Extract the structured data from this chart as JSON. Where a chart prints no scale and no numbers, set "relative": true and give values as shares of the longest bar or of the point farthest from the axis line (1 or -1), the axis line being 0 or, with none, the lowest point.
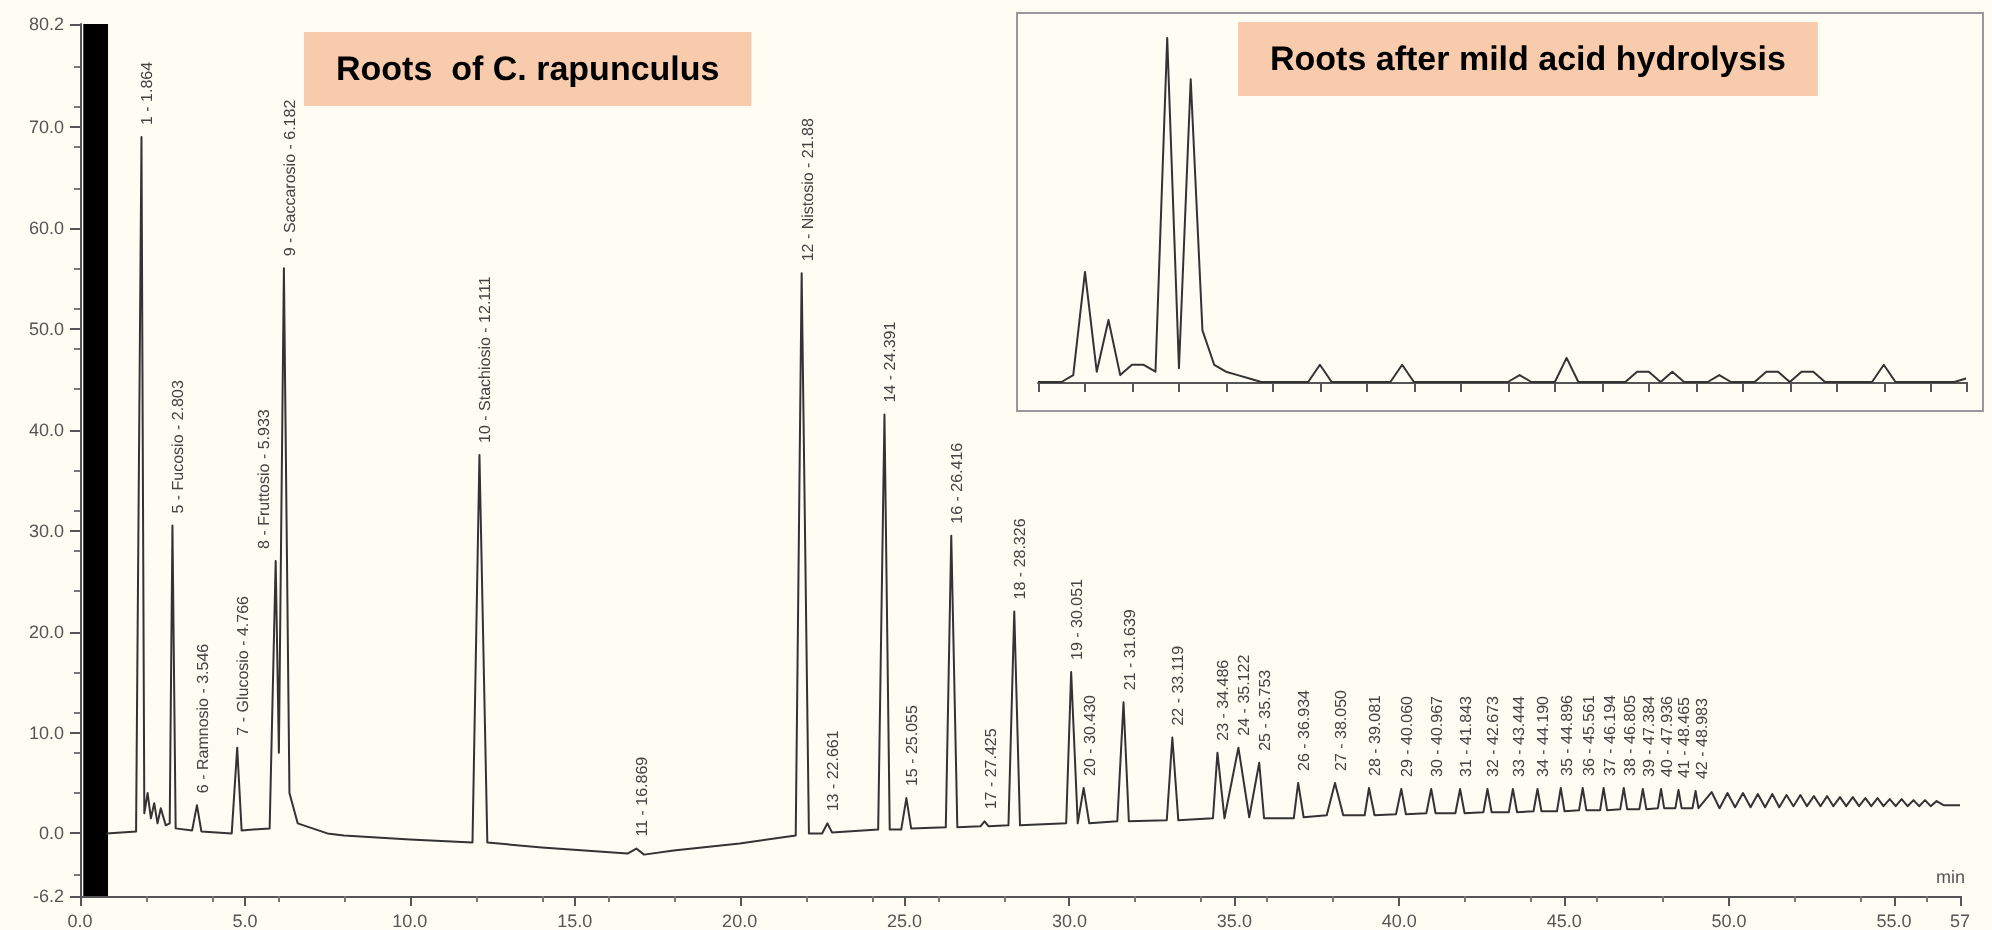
{
  "chart_data": [
    {
      "type": "line",
      "title": "Roots  of C. rapunculus",
      "xlabel": "min",
      "xlim": [
        0,
        57
      ],
      "ylim": [
        -6.2,
        80.2
      ],
      "xticks": [
        {
          "value": 0,
          "label": "0.0"
        },
        {
          "value": 5,
          "label": "5.0"
        },
        {
          "value": 10,
          "label": "10.0"
        },
        {
          "value": 15,
          "label": "15.0"
        },
        {
          "value": 20,
          "label": "20.0"
        },
        {
          "value": 25,
          "label": "25.0"
        },
        {
          "value": 30,
          "label": "30.0"
        },
        {
          "value": 35,
          "label": "35.0"
        },
        {
          "value": 40,
          "label": "40.0"
        },
        {
          "value": 45,
          "label": "45.0"
        },
        {
          "value": 50,
          "label": "50.0"
        },
        {
          "value": 55,
          "label": "55.0"
        },
        {
          "value": 57,
          "label": "57"
        }
      ],
      "yticks": [
        {
          "value": -6.2,
          "label": "-6.2"
        },
        {
          "value": 0,
          "label": "0.0"
        },
        {
          "value": 10,
          "label": "10.0"
        },
        {
          "value": 20,
          "label": "20.0"
        },
        {
          "value": 30,
          "label": "30.0"
        },
        {
          "value": 40,
          "label": "40.0"
        },
        {
          "value": 50,
          "label": "50.0"
        },
        {
          "value": 60,
          "label": "60.0"
        },
        {
          "value": 70,
          "label": "70.0"
        },
        {
          "value": 80.2,
          "label": "80.2"
        }
      ],
      "bands": [
        {
          "axis": "x",
          "from": 0.1,
          "to": 0.85,
          "color": "#000000"
        }
      ],
      "series": [
        {
          "color": "#333333",
          "x": [
            0.8,
            1.7,
            1.864,
            1.95,
            2.05,
            2.15,
            2.25,
            2.35,
            2.45,
            2.6,
            2.72,
            2.803,
            2.9,
            3.4,
            3.546,
            3.68,
            4.6,
            4.766,
            4.9,
            5.75,
            5.933,
            6.03,
            6.182,
            6.35,
            6.6,
            7.5,
            8,
            10,
            11.9,
            12.111,
            12.35,
            14,
            16.6,
            16.869,
            17.1,
            18,
            20,
            21.7,
            21.88,
            22.1,
            22.5,
            22.661,
            22.8,
            24.2,
            24.391,
            24.55,
            24.9,
            25.055,
            25.2,
            26.25,
            26.416,
            26.6,
            27.3,
            27.425,
            27.55,
            28.15,
            28.326,
            28.5,
            29.9,
            30.051,
            30.25,
            30.43,
            30.6,
            31.45,
            31.639,
            31.8,
            32.95,
            33.119,
            33.3,
            34.35,
            34.486,
            34.7,
            35.122,
            35.45,
            35.753,
            35.9,
            36.8,
            36.934,
            37.1,
            37.8,
            38.05,
            38.3,
            38.95,
            39.081,
            39.25,
            39.9,
            40.06,
            40.2,
            40.82,
            40.967,
            41.1,
            41.7,
            41.843,
            41.98,
            42.55,
            42.673,
            42.8,
            43.32,
            43.444,
            43.57,
            44.07,
            44.19,
            44.31,
            44.78,
            44.896,
            45.01,
            45.45,
            45.561,
            45.67,
            46.09,
            46.194,
            46.3,
            46.7,
            46.805,
            46.91,
            47.28,
            47.384,
            47.49,
            47.84,
            47.936,
            48.03,
            48.37,
            48.465,
            48.56,
            48.89,
            48.983,
            49.07,
            49.47,
            49.71,
            49.95,
            50.18,
            50.42,
            50.65,
            50.87,
            51.09,
            51.31,
            51.52,
            51.74,
            51.95,
            52.16,
            52.36,
            52.57,
            52.77,
            52.97,
            53.16,
            53.36,
            53.55,
            53.75,
            53.94,
            54.13,
            54.31,
            54.5,
            54.68,
            54.87,
            55.05,
            55.23,
            55.41,
            55.59,
            55.76,
            55.94,
            56.11,
            56.29,
            56.5,
            57
          ],
          "values": [
            0,
            0.2,
            69,
            2,
            4,
            1.5,
            3,
            1,
            2.5,
            0.8,
            1,
            30.5,
            0.5,
            0.3,
            2.8,
            0.2,
            0,
            8.5,
            0.3,
            0.5,
            27,
            8,
            56,
            4,
            1,
            0,
            -0.2,
            -0.6,
            -0.9,
            37.5,
            -0.9,
            -1.4,
            -2,
            -1.5,
            -2.1,
            -1.7,
            -1,
            -0.2,
            55.5,
            0,
            0,
            1,
            0.1,
            0.4,
            41.5,
            0.4,
            0.4,
            3.5,
            0.5,
            0.6,
            29.5,
            0.6,
            0.7,
            1.2,
            0.7,
            0.8,
            22,
            0.8,
            1,
            16,
            1,
            4.5,
            1,
            1.2,
            13,
            1.2,
            1.3,
            9.5,
            1.3,
            1.5,
            8,
            1.5,
            8.5,
            1.6,
            7,
            1.5,
            1.5,
            5,
            1.6,
            1.8,
            5,
            1.8,
            1.8,
            4.5,
            1.8,
            1.9,
            4.4,
            1.9,
            2,
            4.4,
            2,
            2,
            4.4,
            2,
            2.1,
            4.4,
            2.1,
            2.1,
            4.4,
            2.1,
            2.2,
            4.4,
            2.2,
            2.2,
            4.5,
            2.2,
            2.3,
            4.5,
            2.3,
            2.3,
            4.5,
            2.3,
            2.4,
            4.5,
            2.4,
            2.4,
            4.4,
            2.4,
            2.5,
            4.4,
            2.5,
            2.5,
            4.3,
            2.5,
            2.5,
            4.2,
            2.5,
            4.1,
            2.5,
            4,
            2.6,
            4,
            2.6,
            3.9,
            2.6,
            3.9,
            2.6,
            3.8,
            2.7,
            3.8,
            2.7,
            3.7,
            2.7,
            3.7,
            2.7,
            3.6,
            2.7,
            3.6,
            2.7,
            3.5,
            2.7,
            3.5,
            2.7,
            3.4,
            2.7,
            3.4,
            2.7,
            3.3,
            2.7,
            3.3,
            2.7,
            3.2,
            2.8,
            2.8
          ]
        }
      ],
      "annotations": [
        {
          "text": "1 - 1.864",
          "x": 1.864,
          "y": 69
        },
        {
          "text": "5 - Fucosio - 2.803",
          "x": 2.803,
          "y": 30.5
        },
        {
          "text": "6 - Ramnosio - 3.546",
          "x": 3.546,
          "y": 2.8
        },
        {
          "text": "7 - Glucosio - 4.766",
          "x": 4.766,
          "y": 8.5
        },
        {
          "text": "8 - Fruttosio - 5.933",
          "x": 5.933,
          "y": 27
        },
        {
          "text": "9 - Saccarosio - 6.182",
          "x": 6.182,
          "y": 56
        },
        {
          "text": "10 - Stachiosio - 12.111",
          "x": 12.111,
          "y": 37.5
        },
        {
          "text": "11 - 16.869",
          "x": 16.869,
          "y": -1.5
        },
        {
          "text": "12 - Nistosio - 21.88",
          "x": 21.88,
          "y": 55.5
        },
        {
          "text": "13 - 22.661",
          "x": 22.661,
          "y": 1
        },
        {
          "text": "14 - 24.391",
          "x": 24.391,
          "y": 41.5
        },
        {
          "text": "15 - 25.055",
          "x": 25.055,
          "y": 3.5
        },
        {
          "text": "16 - 26.416",
          "x": 26.416,
          "y": 29.5
        },
        {
          "text": "17 - 27.425",
          "x": 27.425,
          "y": 1.2
        },
        {
          "text": "18 - 28.326",
          "x": 28.326,
          "y": 22
        },
        {
          "text": "19 - 30.051",
          "x": 30.051,
          "y": 16
        },
        {
          "text": "20 - 30.430",
          "x": 30.43,
          "y": 4.5
        },
        {
          "text": "21 - 31.639",
          "x": 31.639,
          "y": 13
        },
        {
          "text": "22 - 33.119",
          "x": 33.119,
          "y": 9.5
        },
        {
          "text": "23 - 34.486",
          "x": 34.486,
          "y": 8
        },
        {
          "text": "24 - 35.122",
          "x": 35.122,
          "y": 8.5
        },
        {
          "text": "25 - 35.753",
          "x": 35.753,
          "y": 7
        },
        {
          "text": "26 - 36.934",
          "x": 36.934,
          "y": 5
        },
        {
          "text": "27 - 38.050",
          "x": 38.05,
          "y": 5
        },
        {
          "text": "28 - 39.081",
          "x": 39.081,
          "y": 4.5
        },
        {
          "text": "29 - 40.060",
          "x": 40.06,
          "y": 4.4
        },
        {
          "text": "30 - 40.967",
          "x": 40.967,
          "y": 4.4
        },
        {
          "text": "31 - 41.843",
          "x": 41.843,
          "y": 4.4
        },
        {
          "text": "32 - 42.673",
          "x": 42.673,
          "y": 4.4
        },
        {
          "text": "33 - 43.444",
          "x": 43.444,
          "y": 4.4
        },
        {
          "text": "34 - 44.190",
          "x": 44.19,
          "y": 4.4
        },
        {
          "text": "35 - 44.896",
          "x": 44.896,
          "y": 4.5
        },
        {
          "text": "36 - 45.561",
          "x": 45.561,
          "y": 4.5
        },
        {
          "text": "37 - 46.194",
          "x": 46.194,
          "y": 4.5
        },
        {
          "text": "38 - 46.805",
          "x": 46.805,
          "y": 4.5
        },
        {
          "text": "39 - 47.384",
          "x": 47.384,
          "y": 4.4
        },
        {
          "text": "40 - 47.936",
          "x": 47.936,
          "y": 4.4
        },
        {
          "text": "41 - 48.465",
          "x": 48.465,
          "y": 4.3
        },
        {
          "text": "42 - 48.983",
          "x": 48.983,
          "y": 4.2
        }
      ]
    },
    {
      "type": "line",
      "title": "Roots after mild acid hydrolysis",
      "relative": true,
      "categories": [
        null,
        null,
        null,
        null,
        null,
        null,
        null,
        null,
        null,
        null,
        null,
        null,
        null,
        null,
        null,
        null,
        null,
        null,
        null,
        null,
        null,
        null,
        null,
        null,
        null,
        null,
        null,
        null,
        null,
        null,
        null,
        null,
        null,
        null,
        null,
        null,
        null,
        null,
        null,
        null,
        null,
        null,
        null,
        null,
        null,
        null,
        null,
        null,
        null,
        null,
        null,
        null,
        null,
        null,
        null,
        null,
        null,
        null,
        null,
        null,
        null,
        null,
        null,
        null,
        null,
        null,
        null,
        null,
        null,
        null,
        null,
        null,
        null,
        null,
        null,
        null,
        null,
        null,
        null,
        null
      ],
      "series": [
        {
          "color": "#333333",
          "values": [
            0,
            0,
            0,
            0.02,
            0.32,
            0.03,
            0.18,
            0.02,
            0.05,
            0.05,
            0.03,
            1,
            0.04,
            0.88,
            0.15,
            0.05,
            0.03,
            0.02,
            0.01,
            0,
            0,
            0,
            0,
            0,
            0.05,
            0,
            0,
            0,
            0,
            0,
            0,
            0.05,
            0,
            0,
            0,
            0,
            0,
            0,
            0,
            0,
            0,
            0.02,
            0,
            0,
            0,
            0.07,
            0,
            0,
            0,
            0,
            0,
            0.03,
            0.03,
            0,
            0.03,
            0,
            0,
            0,
            0.02,
            0,
            0,
            0,
            0.03,
            0.03,
            0,
            0.03,
            0.03,
            0,
            0,
            0,
            0,
            0,
            0.05,
            0,
            0,
            0,
            0,
            0,
            0,
            0.01
          ]
        }
      ]
    }
  ]
}
